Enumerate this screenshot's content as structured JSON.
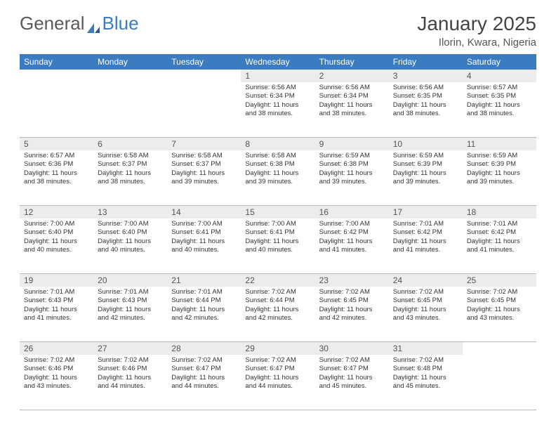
{
  "logo": {
    "text1": "General",
    "text2": "Blue"
  },
  "title": "January 2025",
  "location": "Ilorin, Kwara, Nigeria",
  "colors": {
    "header_bg": "#3b7bbf",
    "header_text": "#ffffff",
    "daynum_bg": "#ececec",
    "border": "#b8b8b8",
    "text": "#333333"
  },
  "day_names": [
    "Sunday",
    "Monday",
    "Tuesday",
    "Wednesday",
    "Thursday",
    "Friday",
    "Saturday"
  ],
  "weeks": [
    [
      {
        "n": "",
        "lines": []
      },
      {
        "n": "",
        "lines": []
      },
      {
        "n": "",
        "lines": []
      },
      {
        "n": "1",
        "lines": [
          "Sunrise: 6:56 AM",
          "Sunset: 6:34 PM",
          "Daylight: 11 hours and 38 minutes."
        ]
      },
      {
        "n": "2",
        "lines": [
          "Sunrise: 6:56 AM",
          "Sunset: 6:34 PM",
          "Daylight: 11 hours and 38 minutes."
        ]
      },
      {
        "n": "3",
        "lines": [
          "Sunrise: 6:56 AM",
          "Sunset: 6:35 PM",
          "Daylight: 11 hours and 38 minutes."
        ]
      },
      {
        "n": "4",
        "lines": [
          "Sunrise: 6:57 AM",
          "Sunset: 6:35 PM",
          "Daylight: 11 hours and 38 minutes."
        ]
      }
    ],
    [
      {
        "n": "5",
        "lines": [
          "Sunrise: 6:57 AM",
          "Sunset: 6:36 PM",
          "Daylight: 11 hours and 38 minutes."
        ]
      },
      {
        "n": "6",
        "lines": [
          "Sunrise: 6:58 AM",
          "Sunset: 6:37 PM",
          "Daylight: 11 hours and 38 minutes."
        ]
      },
      {
        "n": "7",
        "lines": [
          "Sunrise: 6:58 AM",
          "Sunset: 6:37 PM",
          "Daylight: 11 hours and 39 minutes."
        ]
      },
      {
        "n": "8",
        "lines": [
          "Sunrise: 6:58 AM",
          "Sunset: 6:38 PM",
          "Daylight: 11 hours and 39 minutes."
        ]
      },
      {
        "n": "9",
        "lines": [
          "Sunrise: 6:59 AM",
          "Sunset: 6:38 PM",
          "Daylight: 11 hours and 39 minutes."
        ]
      },
      {
        "n": "10",
        "lines": [
          "Sunrise: 6:59 AM",
          "Sunset: 6:39 PM",
          "Daylight: 11 hours and 39 minutes."
        ]
      },
      {
        "n": "11",
        "lines": [
          "Sunrise: 6:59 AM",
          "Sunset: 6:39 PM",
          "Daylight: 11 hours and 39 minutes."
        ]
      }
    ],
    [
      {
        "n": "12",
        "lines": [
          "Sunrise: 7:00 AM",
          "Sunset: 6:40 PM",
          "Daylight: 11 hours and 40 minutes."
        ]
      },
      {
        "n": "13",
        "lines": [
          "Sunrise: 7:00 AM",
          "Sunset: 6:40 PM",
          "Daylight: 11 hours and 40 minutes."
        ]
      },
      {
        "n": "14",
        "lines": [
          "Sunrise: 7:00 AM",
          "Sunset: 6:41 PM",
          "Daylight: 11 hours and 40 minutes."
        ]
      },
      {
        "n": "15",
        "lines": [
          "Sunrise: 7:00 AM",
          "Sunset: 6:41 PM",
          "Daylight: 11 hours and 40 minutes."
        ]
      },
      {
        "n": "16",
        "lines": [
          "Sunrise: 7:00 AM",
          "Sunset: 6:42 PM",
          "Daylight: 11 hours and 41 minutes."
        ]
      },
      {
        "n": "17",
        "lines": [
          "Sunrise: 7:01 AM",
          "Sunset: 6:42 PM",
          "Daylight: 11 hours and 41 minutes."
        ]
      },
      {
        "n": "18",
        "lines": [
          "Sunrise: 7:01 AM",
          "Sunset: 6:42 PM",
          "Daylight: 11 hours and 41 minutes."
        ]
      }
    ],
    [
      {
        "n": "19",
        "lines": [
          "Sunrise: 7:01 AM",
          "Sunset: 6:43 PM",
          "Daylight: 11 hours and 41 minutes."
        ]
      },
      {
        "n": "20",
        "lines": [
          "Sunrise: 7:01 AM",
          "Sunset: 6:43 PM",
          "Daylight: 11 hours and 42 minutes."
        ]
      },
      {
        "n": "21",
        "lines": [
          "Sunrise: 7:01 AM",
          "Sunset: 6:44 PM",
          "Daylight: 11 hours and 42 minutes."
        ]
      },
      {
        "n": "22",
        "lines": [
          "Sunrise: 7:02 AM",
          "Sunset: 6:44 PM",
          "Daylight: 11 hours and 42 minutes."
        ]
      },
      {
        "n": "23",
        "lines": [
          "Sunrise: 7:02 AM",
          "Sunset: 6:45 PM",
          "Daylight: 11 hours and 42 minutes."
        ]
      },
      {
        "n": "24",
        "lines": [
          "Sunrise: 7:02 AM",
          "Sunset: 6:45 PM",
          "Daylight: 11 hours and 43 minutes."
        ]
      },
      {
        "n": "25",
        "lines": [
          "Sunrise: 7:02 AM",
          "Sunset: 6:45 PM",
          "Daylight: 11 hours and 43 minutes."
        ]
      }
    ],
    [
      {
        "n": "26",
        "lines": [
          "Sunrise: 7:02 AM",
          "Sunset: 6:46 PM",
          "Daylight: 11 hours and 43 minutes."
        ]
      },
      {
        "n": "27",
        "lines": [
          "Sunrise: 7:02 AM",
          "Sunset: 6:46 PM",
          "Daylight: 11 hours and 44 minutes."
        ]
      },
      {
        "n": "28",
        "lines": [
          "Sunrise: 7:02 AM",
          "Sunset: 6:47 PM",
          "Daylight: 11 hours and 44 minutes."
        ]
      },
      {
        "n": "29",
        "lines": [
          "Sunrise: 7:02 AM",
          "Sunset: 6:47 PM",
          "Daylight: 11 hours and 44 minutes."
        ]
      },
      {
        "n": "30",
        "lines": [
          "Sunrise: 7:02 AM",
          "Sunset: 6:47 PM",
          "Daylight: 11 hours and 45 minutes."
        ]
      },
      {
        "n": "31",
        "lines": [
          "Sunrise: 7:02 AM",
          "Sunset: 6:48 PM",
          "Daylight: 11 hours and 45 minutes."
        ]
      },
      {
        "n": "",
        "lines": []
      }
    ]
  ]
}
